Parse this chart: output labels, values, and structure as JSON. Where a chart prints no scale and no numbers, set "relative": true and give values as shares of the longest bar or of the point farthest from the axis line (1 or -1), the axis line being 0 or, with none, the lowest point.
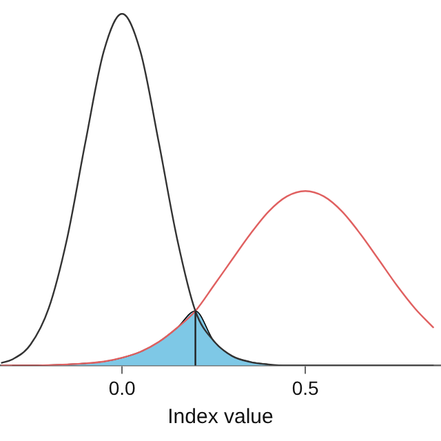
{
  "chart_data": {
    "type": "line",
    "xlabel": "Index value",
    "relative": true,
    "grid": false,
    "legend": false,
    "marker": "none",
    "line_style": "solid",
    "x": [
      -0.33,
      -0.3,
      -0.25,
      -0.2,
      -0.15,
      -0.1,
      -0.05,
      0,
      0.05,
      0.1,
      0.15,
      0.2,
      0.25,
      0.3,
      0.35,
      0.4,
      0.45,
      0.5,
      0.55,
      0.6,
      0.65,
      0.7,
      0.75,
      0.8,
      0.85
    ],
    "xlim": [
      -0.333,
      0.87
    ],
    "xticks": [
      {
        "value": 0,
        "label": "0.0"
      },
      0.5
    ],
    "series": [
      {
        "type": "area",
        "color": "#7ec8e6",
        "x": [
          -0.3,
          -0.25,
          -0.2,
          -0.15,
          -0.1,
          -0.05,
          0,
          0.05,
          0.1,
          0.15,
          0.2,
          0.25,
          0.3,
          0.35,
          0.4
        ],
        "values": [
          0,
          0,
          0.001,
          0.003,
          0.006,
          0.011,
          0.022,
          0.039,
          0.067,
          0.107,
          0.155,
          0.07,
          0.027,
          0.01,
          0.003
        ]
      },
      {
        "color": "#333333",
        "values": [
          0.007,
          0.017,
          0.059,
          0.163,
          0.361,
          0.635,
          0.893,
          1,
          0.893,
          0.635,
          0.361,
          0.155,
          0.07,
          0.027,
          0.01,
          0.003,
          0,
          0,
          0,
          0,
          0,
          0,
          0,
          0,
          0
        ]
      },
      {
        "color": "#e06060",
        "values": [
          0,
          0,
          0,
          0.001,
          0.003,
          0.006,
          0.011,
          0.022,
          0.039,
          0.067,
          0.107,
          0.155,
          0.227,
          0.301,
          0.374,
          0.438,
          0.481,
          0.496,
          0.481,
          0.438,
          0.374,
          0.301,
          0.227,
          0.161,
          0.107
        ]
      }
    ],
    "ref_lines": [
      {
        "axis": "x",
        "value": 0.2,
        "color": "#222222"
      }
    ]
  }
}
